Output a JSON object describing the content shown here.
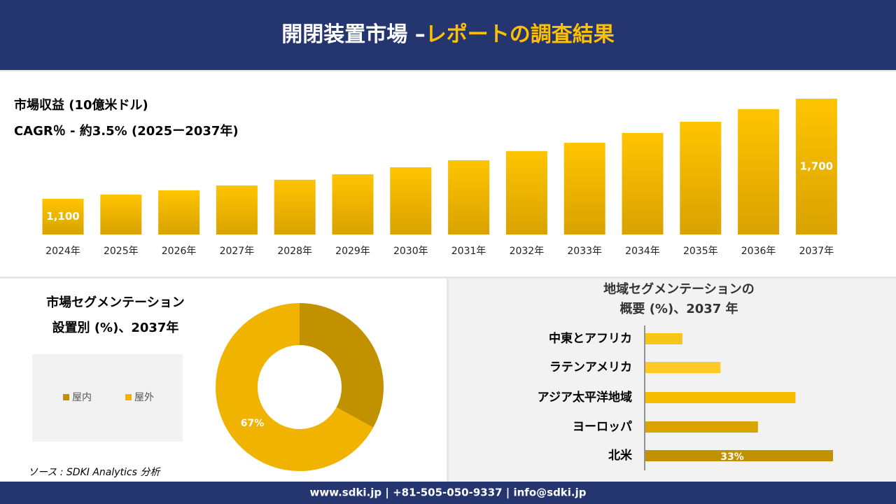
{
  "header": {
    "title": "開閉装置市場 –",
    "title_highlight": "レポートの調査結果"
  },
  "chart_data": [
    {
      "type": "bar",
      "title": "市場収益 (10億米ドル)",
      "subtitle": "CAGR％ - 約3.5% (2025ー2037年)",
      "categories": [
        "2024年",
        "2025年",
        "2026年",
        "2027年",
        "2028年",
        "2029年",
        "2030年",
        "2031年",
        "2032年",
        "2033年",
        "2034年",
        "2035年",
        "2036年",
        "2037年"
      ],
      "values": [
        1100,
        1125,
        1151,
        1180,
        1214,
        1247,
        1289,
        1331,
        1386,
        1436,
        1495,
        1562,
        1638,
        1700
      ],
      "value_labels": [
        "1,100",
        null,
        null,
        null,
        null,
        null,
        null,
        null,
        null,
        null,
        null,
        null,
        null,
        "1,700"
      ],
      "color": "#e8b100",
      "ylim": [
        886,
        1700
      ]
    },
    {
      "type": "donut",
      "title": "市場セグメンテーション",
      "subtitle": "設置別 (%)、2037年",
      "categories": [
        "屋内",
        "屋外"
      ],
      "values": [
        33,
        67
      ],
      "value_labels": [
        null,
        "67%"
      ],
      "colors": [
        "#c29100",
        "#f0b400"
      ]
    },
    {
      "type": "hbar",
      "title": [
        "地域セグメンテーションの",
        "概要 (%)、2037 年"
      ],
      "categories": [
        "中東とアフリカ",
        "ラテンアメリカ",
        "アジア太平洋地域",
        "ヨーロッパ",
        "北米"
      ],
      "values": [
        6.5,
        13.2,
        26.4,
        19.8,
        33
      ],
      "value_labels": [
        null,
        null,
        null,
        null,
        "33%"
      ],
      "colors": [
        "#f5c518",
        "#ffc928",
        "#f5bc00",
        "#d9a400",
        "#c29100"
      ],
      "xlim": [
        0,
        33
      ]
    }
  ],
  "source": "ソース : SDKI Analytics 分析",
  "footer": "www.sdki.jp | +81-505-050-9337 | info@sdki.jp"
}
